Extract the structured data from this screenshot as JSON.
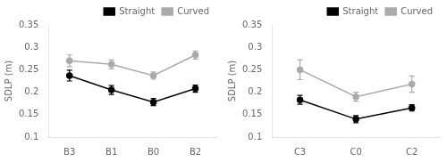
{
  "chart_data": [
    {
      "type": "line",
      "categories": [
        "B3",
        "B1",
        "B0",
        "B2"
      ],
      "series": [
        {
          "name": "Straight",
          "color": "#000000",
          "values": [
            0.237,
            0.205,
            0.178,
            0.208
          ],
          "errors": [
            0.012,
            0.01,
            0.008,
            0.008
          ]
        },
        {
          "name": "Curved",
          "color": "#aaaaaa",
          "values": [
            0.27,
            0.262,
            0.237,
            0.283
          ],
          "errors": [
            0.013,
            0.01,
            0.008,
            0.009
          ]
        }
      ],
      "y_label": "SDLP (m)",
      "ylim": [
        0.1,
        0.35
      ],
      "yticks": [
        0.1,
        0.15,
        0.2,
        0.25,
        0.3,
        0.35
      ],
      "marker": "o",
      "legend": "upper right",
      "grid": false
    },
    {
      "type": "line",
      "categories": [
        "C3",
        "C0",
        "C2"
      ],
      "series": [
        {
          "name": "Straight",
          "color": "#000000",
          "values": [
            0.183,
            0.14,
            0.165
          ],
          "errors": [
            0.01,
            0.008,
            0.007
          ]
        },
        {
          "name": "Curved",
          "color": "#aaaaaa",
          "values": [
            0.25,
            0.19,
            0.218
          ],
          "errors": [
            0.022,
            0.01,
            0.018
          ]
        }
      ],
      "y_label": "SDLP (m)",
      "ylim": [
        0.1,
        0.35
      ],
      "yticks": [
        0.1,
        0.15,
        0.2,
        0.25,
        0.3,
        0.35
      ],
      "marker": "o",
      "legend": "upper right",
      "grid": false
    }
  ]
}
